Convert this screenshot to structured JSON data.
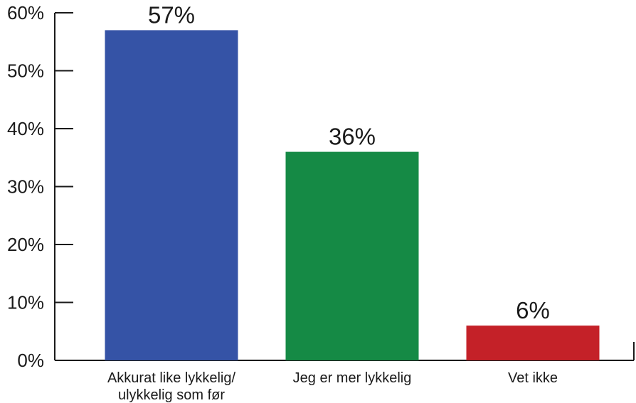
{
  "chart_data": {
    "type": "bar",
    "categories": [
      [
        "Akkurat like lykkelig/",
        "ulykkelig som før"
      ],
      [
        "Jeg er mer lykkelig"
      ],
      [
        "Vet ikke"
      ]
    ],
    "values": [
      57,
      36,
      6
    ],
    "data_labels": [
      "57%",
      "36%",
      "6%"
    ],
    "colors": [
      "#3553a6",
      "#158a45",
      "#c42128"
    ],
    "ylim": [
      0,
      60
    ],
    "yticks": [
      0,
      10,
      20,
      30,
      40,
      50,
      60
    ],
    "ytick_labels": [
      "0%",
      "10%",
      "20%",
      "30%",
      "40%",
      "50%",
      "60%"
    ],
    "grid": false,
    "legend": "none"
  }
}
